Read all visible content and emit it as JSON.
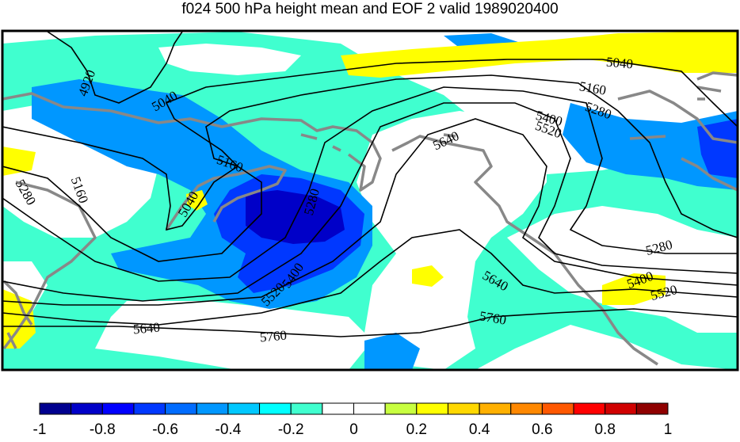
{
  "title": "f024 500 hPa height mean and EOF 2 valid 1989020400",
  "contour_labels": [
    "4920",
    "5040",
    "5040",
    "5040",
    "5160",
    "5160",
    "5160",
    "5280",
    "5280",
    "5280",
    "5280",
    "5400",
    "5400",
    "5400",
    "5520",
    "5520",
    "5520",
    "5640",
    "5640",
    "5640",
    "5760",
    "5760"
  ],
  "colorbar": {
    "colors": [
      "#00008f",
      "#0000c8",
      "#0000ff",
      "#0038ff",
      "#006cff",
      "#0097ff",
      "#00c8ff",
      "#00ffff",
      "#40ffcf",
      "#ffffff",
      "#ffffff",
      "#c8ff40",
      "#ffff00",
      "#ffd800",
      "#ffb000",
      "#ff8800",
      "#ff5800",
      "#ff0000",
      "#d00000",
      "#8f0000"
    ],
    "tick_labels": [
      "-1",
      "-0.8",
      "-0.6",
      "-0.4",
      "-0.2",
      "0",
      "0.2",
      "0.4",
      "0.6",
      "0.8",
      "1"
    ]
  },
  "colors": {
    "coast": "#888888",
    "contour": "#000000",
    "shade_light": "#40ffcf",
    "shade_mid": "#0097ff",
    "shade_dark": "#0038ff",
    "shade_core": "#0000c8",
    "shade_pos": "#ffff00"
  }
}
